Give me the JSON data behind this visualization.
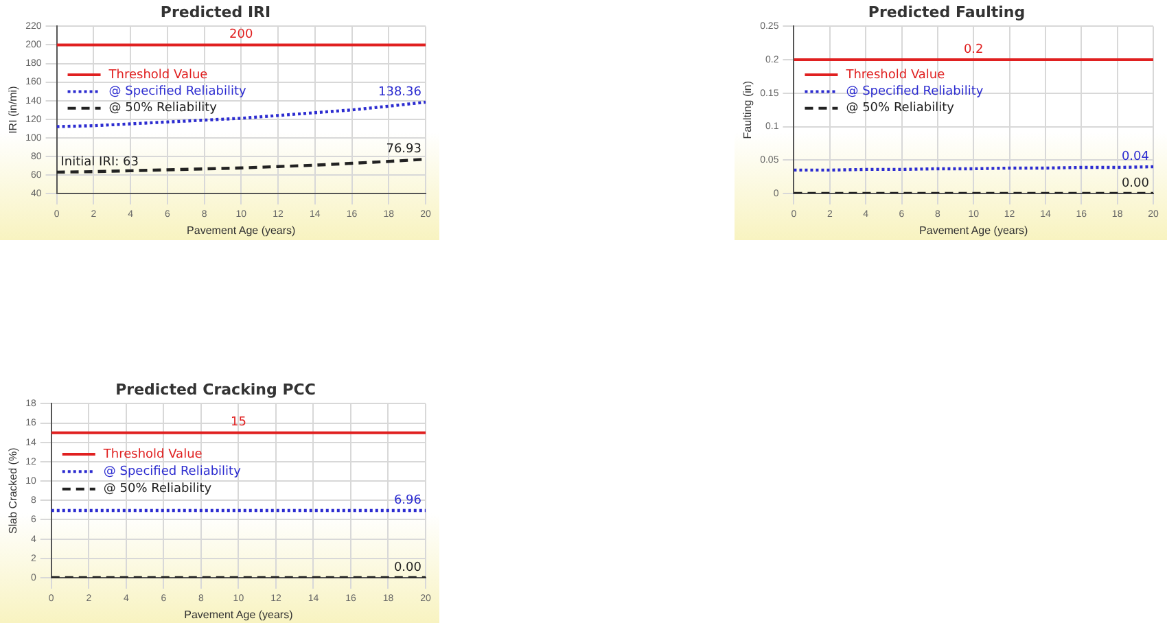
{
  "chart_data": [
    {
      "type": "line",
      "title": "Predicted IRI",
      "xlabel": "Pavement Age (years)",
      "ylabel": "IRI (in/mi)",
      "x": [
        0,
        2,
        4,
        6,
        8,
        10,
        12,
        14,
        16,
        18,
        20
      ],
      "series": [
        {
          "name": "Threshold Value",
          "color": "#e02020",
          "line_style": "solid",
          "values": [
            200,
            200,
            200,
            200,
            200,
            200,
            200,
            200,
            200,
            200,
            200
          ]
        },
        {
          "name": "@ Specified Reliability",
          "color": "#2c2cd0",
          "line_style": "dotted",
          "values": [
            112,
            113,
            115,
            117,
            119,
            121,
            124,
            127,
            130,
            134,
            138.36
          ]
        },
        {
          "name": "@ 50% Reliability",
          "color": "#222222",
          "line_style": "dashed",
          "values": [
            63,
            63.5,
            64.5,
            65.5,
            66.5,
            67.5,
            69,
            70.5,
            72.5,
            74.5,
            76.93
          ]
        }
      ],
      "annotations": [
        {
          "text": "200",
          "x": 10,
          "y": 200
        },
        {
          "text": "138.36",
          "x": 20,
          "y": 138.36
        },
        {
          "text": "76.93",
          "x": 20,
          "y": 76.93
        },
        {
          "text": "Initial IRI: 63",
          "x": 0,
          "y": 63
        }
      ],
      "xlim": [
        0,
        20
      ],
      "xticks": [
        0,
        2,
        4,
        6,
        8,
        10,
        12,
        14,
        16,
        18,
        20
      ],
      "ylim": [
        40,
        220
      ],
      "yticks": [
        40,
        60,
        80,
        100,
        120,
        140,
        160,
        180,
        200,
        220
      ],
      "grid": true,
      "legend": "left",
      "marker": "none"
    },
    {
      "type": "line",
      "title": "Predicted Faulting",
      "xlabel": "Pavement Age (years)",
      "ylabel": "Faulting (in)",
      "x": [
        0,
        2,
        4,
        6,
        8,
        10,
        12,
        14,
        16,
        18,
        20
      ],
      "series": [
        {
          "name": "Threshold Value",
          "color": "#e02020",
          "line_style": "solid",
          "values": [
            0.2,
            0.2,
            0.2,
            0.2,
            0.2,
            0.2,
            0.2,
            0.2,
            0.2,
            0.2,
            0.2
          ]
        },
        {
          "name": "@ Specified Reliability",
          "color": "#2c2cd0",
          "line_style": "dotted",
          "values": [
            0.035,
            0.035,
            0.036,
            0.036,
            0.037,
            0.037,
            0.038,
            0.038,
            0.039,
            0.039,
            0.04
          ]
        },
        {
          "name": "@ 50% Reliability",
          "color": "#222222",
          "line_style": "dashed",
          "values": [
            0,
            0,
            0,
            0,
            0,
            0,
            0,
            0,
            0,
            0,
            0
          ]
        }
      ],
      "annotations": [
        {
          "text": "0.2",
          "x": 10,
          "y": 0.2
        },
        {
          "text": "0.04",
          "x": 20,
          "y": 0.04
        },
        {
          "text": "0.00",
          "x": 20,
          "y": 0
        }
      ],
      "xlim": [
        0,
        20
      ],
      "xticks": [
        0,
        2,
        4,
        6,
        8,
        10,
        12,
        14,
        16,
        18,
        20
      ],
      "ylim": [
        0,
        0.25
      ],
      "yticks": [
        0,
        0.05,
        0.1,
        0.15,
        0.2,
        0.25
      ],
      "grid": true,
      "legend": "left",
      "marker": "none"
    },
    {
      "type": "line",
      "title": "Predicted Cracking PCC",
      "xlabel": "Pavement Age (years)",
      "ylabel": "Slab Cracked (%)",
      "x": [
        0,
        2,
        4,
        6,
        8,
        10,
        12,
        14,
        16,
        18,
        20
      ],
      "series": [
        {
          "name": "Threshold Value",
          "color": "#e02020",
          "line_style": "solid",
          "values": [
            15,
            15,
            15,
            15,
            15,
            15,
            15,
            15,
            15,
            15,
            15
          ]
        },
        {
          "name": "@ Specified Reliability",
          "color": "#2c2cd0",
          "line_style": "dotted",
          "values": [
            6.96,
            6.96,
            6.96,
            6.96,
            6.96,
            6.96,
            6.96,
            6.96,
            6.96,
            6.96,
            6.96
          ]
        },
        {
          "name": "@ 50% Reliability",
          "color": "#222222",
          "line_style": "dashed",
          "values": [
            0,
            0,
            0,
            0,
            0,
            0,
            0,
            0,
            0,
            0,
            0
          ]
        }
      ],
      "annotations": [
        {
          "text": "15",
          "x": 10,
          "y": 15
        },
        {
          "text": "6.96",
          "x": 20,
          "y": 6.96
        },
        {
          "text": "0.00",
          "x": 20,
          "y": 0
        }
      ],
      "xlim": [
        0,
        20
      ],
      "xticks": [
        0,
        2,
        4,
        6,
        8,
        10,
        12,
        14,
        16,
        18,
        20
      ],
      "ylim": [
        0,
        18
      ],
      "yticks": [
        0,
        2,
        4,
        6,
        8,
        10,
        12,
        14,
        16,
        18
      ],
      "grid": true,
      "legend": "left",
      "marker": "none"
    }
  ]
}
